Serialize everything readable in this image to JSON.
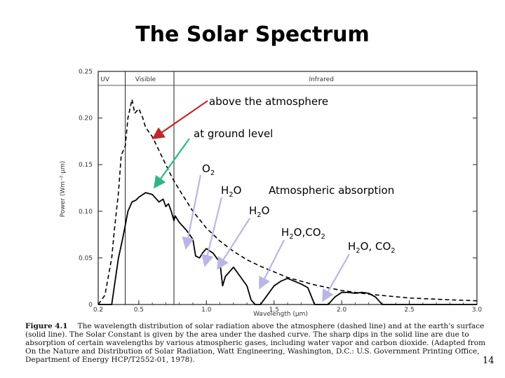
{
  "slide": {
    "title": "The Solar Spectrum",
    "number": "14"
  },
  "caption": {
    "label": "Figure 4.1",
    "text": "The wavelength distribution of solar radiation above the atmosphere (dashed line) and at the earth's surface (solid line). The Solar Constant is given by the area under the dashed curve. The sharp dips in the solid line are due to absorption of certain wavelengths by various atmospheric gases, including water vapor and carbon dioxide. (Adapted from On the Nature and Distribution of Solar Radiation, Watt Engineering, Washington, D.C.: U.S. Government Printing Office, Department of Energy HCP/T2552-01, 1978)."
  },
  "annotations": {
    "above": "above the atmosphere",
    "ground": "at ground level",
    "o2": "O",
    "o2_sub": "2",
    "h2o_1_a": "H",
    "h2o_1_sub": "2",
    "h2o_1_b": "O",
    "atm": "Atmospheric absorption",
    "h2o_2_a": "H",
    "h2o_2_sub": "2",
    "h2o_2_b": "O",
    "h2oco2_a": "H",
    "h2oco2_sub1": "2",
    "h2oco2_b": "O,CO",
    "h2oco2_sub2": "2",
    "h2oco2b_a": "H",
    "h2oco2b_sub1": "2",
    "h2oco2b_b": "O, CO",
    "h2oco2b_sub2": "2"
  },
  "colors": {
    "arrow_red": "#c0282d",
    "arrow_teal": "#2fb58a",
    "arrow_lavender": "#b9b6e6"
  },
  "chart_data": {
    "type": "line",
    "xlabel": "Wavelength (μm)",
    "ylabel": "Power (Wm⁻²·μm)",
    "xlim": [
      0.2,
      3.0
    ],
    "ylim": [
      0,
      0.25
    ],
    "xticks": [
      {
        "value": 0.2,
        "label": "0.2"
      },
      {
        "value": 0.5,
        "label": "0.5"
      },
      {
        "value": 1.0,
        "label": "1.0"
      },
      {
        "value": 1.5,
        "label": "1.5"
      },
      {
        "value": 2.0,
        "label": "2.0"
      },
      {
        "value": 2.5,
        "label": "2.5"
      },
      {
        "value": 3.0,
        "label": "3.0"
      }
    ],
    "yticks": [
      {
        "value": 0,
        "label": "0"
      },
      {
        "value": 0.05,
        "label": "0.05"
      },
      {
        "value": 0.1,
        "label": "0.10"
      },
      {
        "value": 0.15,
        "label": "0.15"
      },
      {
        "value": 0.2,
        "label": "0.20"
      },
      {
        "value": 0.25,
        "label": "0.25"
      }
    ],
    "regions": [
      {
        "label": "UV",
        "x": 0.25
      },
      {
        "label": "Visible",
        "x": 0.55
      },
      {
        "label": "Infrared",
        "x": 1.85
      }
    ],
    "boundaries": [
      0.4,
      0.76
    ],
    "series": [
      {
        "style": "dashed",
        "x": [
          0.2,
          0.25,
          0.3,
          0.32,
          0.35,
          0.37,
          0.4,
          0.42,
          0.45,
          0.47,
          0.5,
          0.53,
          0.55,
          0.6,
          0.65,
          0.7,
          0.75,
          0.8,
          0.9,
          1.0,
          1.1,
          1.2,
          1.3,
          1.4,
          1.5,
          1.6,
          1.8,
          2.0,
          2.2,
          2.5,
          2.8,
          3.0
        ],
        "y": [
          0.0,
          0.01,
          0.05,
          0.08,
          0.12,
          0.16,
          0.17,
          0.2,
          0.22,
          0.205,
          0.21,
          0.2,
          0.19,
          0.18,
          0.165,
          0.15,
          0.135,
          0.123,
          0.1,
          0.082,
          0.068,
          0.057,
          0.048,
          0.041,
          0.035,
          0.029,
          0.021,
          0.015,
          0.011,
          0.007,
          0.005,
          0.004
        ]
      },
      {
        "style": "solid",
        "x": [
          0.2,
          0.3,
          0.32,
          0.35,
          0.38,
          0.4,
          0.42,
          0.45,
          0.48,
          0.5,
          0.55,
          0.6,
          0.65,
          0.68,
          0.7,
          0.72,
          0.74,
          0.76,
          0.77,
          0.8,
          0.85,
          0.9,
          0.92,
          0.95,
          0.97,
          1.0,
          1.05,
          1.1,
          1.12,
          1.14,
          1.17,
          1.2,
          1.25,
          1.3,
          1.33,
          1.36,
          1.38,
          1.4,
          1.45,
          1.5,
          1.55,
          1.6,
          1.65,
          1.7,
          1.75,
          1.8,
          1.85,
          1.9,
          1.95,
          2.0,
          2.05,
          2.1,
          2.15,
          2.2,
          2.25,
          2.3,
          2.4,
          2.5,
          2.6,
          2.7,
          2.8,
          2.9,
          3.0
        ],
        "y": [
          0.0,
          0.0,
          0.02,
          0.05,
          0.07,
          0.085,
          0.1,
          0.11,
          0.112,
          0.115,
          0.12,
          0.118,
          0.11,
          0.113,
          0.105,
          0.108,
          0.1,
          0.09,
          0.095,
          0.088,
          0.08,
          0.07,
          0.052,
          0.05,
          0.055,
          0.06,
          0.055,
          0.045,
          0.02,
          0.03,
          0.035,
          0.04,
          0.03,
          0.02,
          0.005,
          0.0,
          0.0,
          0.0,
          0.01,
          0.02,
          0.025,
          0.028,
          0.025,
          0.022,
          0.018,
          0.0,
          0.0,
          0.0,
          0.008,
          0.013,
          0.013,
          0.012,
          0.013,
          0.012,
          0.008,
          0.0,
          0.0,
          0.0,
          0.0,
          0.0,
          0.0,
          0.0,
          0.0
        ]
      }
    ]
  }
}
